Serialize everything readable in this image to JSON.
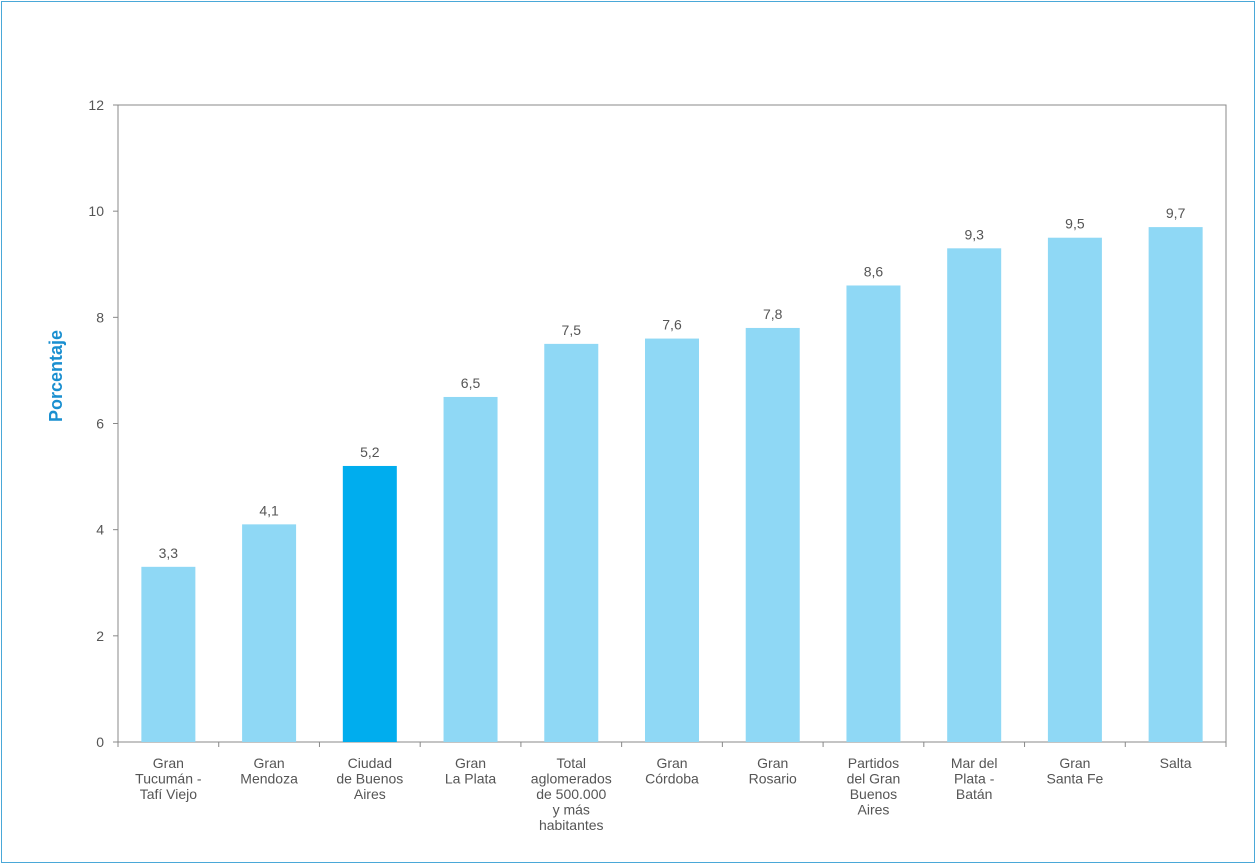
{
  "chart_data": {
    "type": "bar",
    "title": "",
    "xlabel": "",
    "ylabel": "Porcentaje",
    "ylim": [
      0,
      12
    ],
    "yticks": [
      0,
      2,
      4,
      6,
      8,
      10,
      12
    ],
    "grid": false,
    "categories": [
      [
        "Gran",
        "Tucumán -",
        "Tafí Viejo"
      ],
      [
        "Gran",
        "Mendoza"
      ],
      [
        "Ciudad",
        "de Buenos",
        "Aires"
      ],
      [
        "Gran",
        "La Plata"
      ],
      [
        "Total",
        "aglomerados",
        "de 500.000",
        "y más",
        "habitantes"
      ],
      [
        "Gran",
        "Córdoba"
      ],
      [
        "Gran",
        "Rosario"
      ],
      [
        "Partidos",
        "del Gran",
        "Buenos",
        "Aires"
      ],
      [
        "Mar del",
        "Plata -",
        "Batán"
      ],
      [
        "Gran",
        "Santa Fe"
      ],
      [
        "Salta"
      ]
    ],
    "values": [
      3.3,
      4.1,
      5.2,
      6.5,
      7.5,
      7.6,
      7.8,
      8.6,
      9.3,
      9.5,
      9.7
    ],
    "data_labels": [
      "3,3",
      "4,1",
      "5,2",
      "6,5",
      "7,5",
      "7,6",
      "7,8",
      "8,6",
      "9,3",
      "9,5",
      "9,7"
    ],
    "highlight_index": 2,
    "colors": {
      "bar": "#8fd8f5",
      "highlight": "#00adee",
      "axis": "#888888",
      "ylabel": "#1a8fd0",
      "frame": "#4aa8d8"
    }
  }
}
